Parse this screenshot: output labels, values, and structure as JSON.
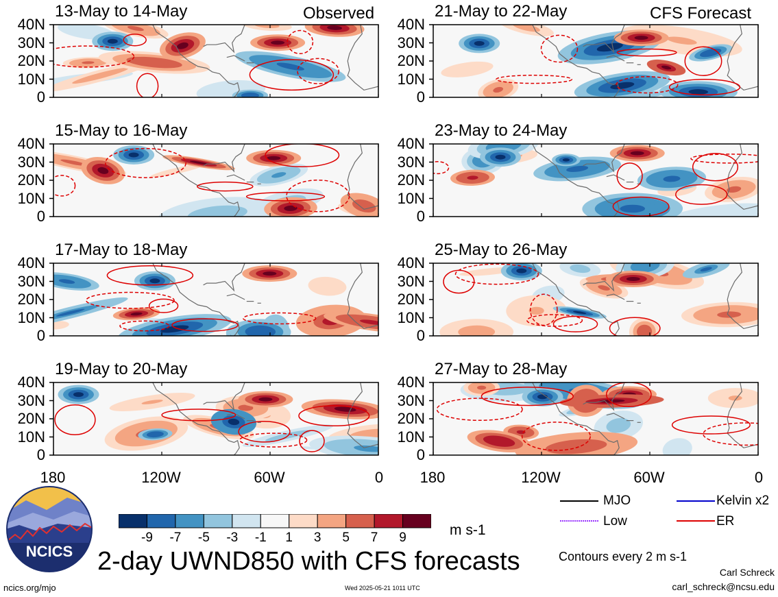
{
  "header": {
    "left_label": "Observed",
    "right_label": "CFS Forecast"
  },
  "panels": [
    {
      "title": "13-May to 14-May",
      "column": "observed"
    },
    {
      "title": "15-May to 16-May",
      "column": "observed"
    },
    {
      "title": "17-May to 18-May",
      "column": "observed"
    },
    {
      "title": "19-May to 20-May",
      "column": "observed"
    },
    {
      "title": "21-May to 22-May",
      "column": "forecast"
    },
    {
      "title": "23-May to 24-May",
      "column": "forecast"
    },
    {
      "title": "25-May to 26-May",
      "column": "forecast"
    },
    {
      "title": "27-May to 28-May",
      "column": "forecast"
    }
  ],
  "axes": {
    "y_ticks": [
      "40N",
      "30N",
      "20N",
      "10N",
      "0"
    ],
    "x_ticks": [
      "180",
      "120W",
      "60W",
      "0"
    ]
  },
  "colorbar": {
    "labels": [
      "-9",
      "-7",
      "-5",
      "-3",
      "-1",
      "1",
      "3",
      "5",
      "7",
      "9"
    ],
    "unit": "m s-1",
    "colors": [
      "#08306b",
      "#2166ac",
      "#4393c3",
      "#92c5de",
      "#d1e5f0",
      "#f7f7f7",
      "#fddbc7",
      "#f4a582",
      "#d6604d",
      "#b2182b",
      "#67001f"
    ]
  },
  "legend": {
    "items": [
      {
        "label": "MJO",
        "color": "#000000",
        "style": "solid"
      },
      {
        "label": "Kelvin x2",
        "color": "#0000cc",
        "style": "solid"
      },
      {
        "label": "Low",
        "color": "#9933ff",
        "style": "dotted"
      },
      {
        "label": "ER",
        "color": "#dd0000",
        "style": "solid"
      }
    ],
    "contour_note": "Contours every 2 m s-1"
  },
  "title": "2-day UWND850 with CFS forecasts",
  "footer": {
    "url": "ncics.org/mjo",
    "timestamp": "Wed 2025-05-21 1011 UTC",
    "author": "Carl Schreck",
    "email": "carl_schreck@ncsu.edu"
  },
  "logo": {
    "text": "NCICS"
  }
}
